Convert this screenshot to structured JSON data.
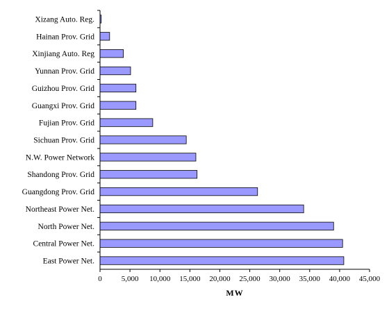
{
  "chart_data": {
    "type": "bar",
    "orientation": "horizontal",
    "categories": [
      "Xizang Auto. Reg.",
      "Hainan Prov. Grid",
      "Xinjiang Auto. Reg",
      "Yunnan Prov. Grid",
      "Guizhou Prov. Grid",
      "Guangxi Prov. Grid",
      "Fujian Prov. Grid",
      "Sichuan Prov. Grid",
      "N.W. Power Network",
      "Shandong Prov. Grid",
      "Guangdong Prov. Grid",
      "Northeast Power Net.",
      "North Power Net.",
      "Central Power Net.",
      "East Power Net."
    ],
    "values": [
      200,
      1600,
      3900,
      5100,
      6000,
      6000,
      8800,
      14400,
      16000,
      16200,
      26300,
      34000,
      39000,
      40500,
      40700
    ],
    "xlabel": "MW",
    "ylabel": "",
    "xlim": [
      0,
      45000
    ],
    "xticks": [
      0,
      5000,
      10000,
      15000,
      20000,
      25000,
      30000,
      35000,
      40000,
      45000
    ],
    "xtick_labels": [
      "0",
      "5,000",
      "10,000",
      "15,000",
      "20,000",
      "25,000",
      "30,000",
      "35,000",
      "40,000",
      "45,000"
    ],
    "grid": false,
    "legend": "none",
    "bar_color": "#9999ff",
    "bar_edge_color": "#000000"
  }
}
